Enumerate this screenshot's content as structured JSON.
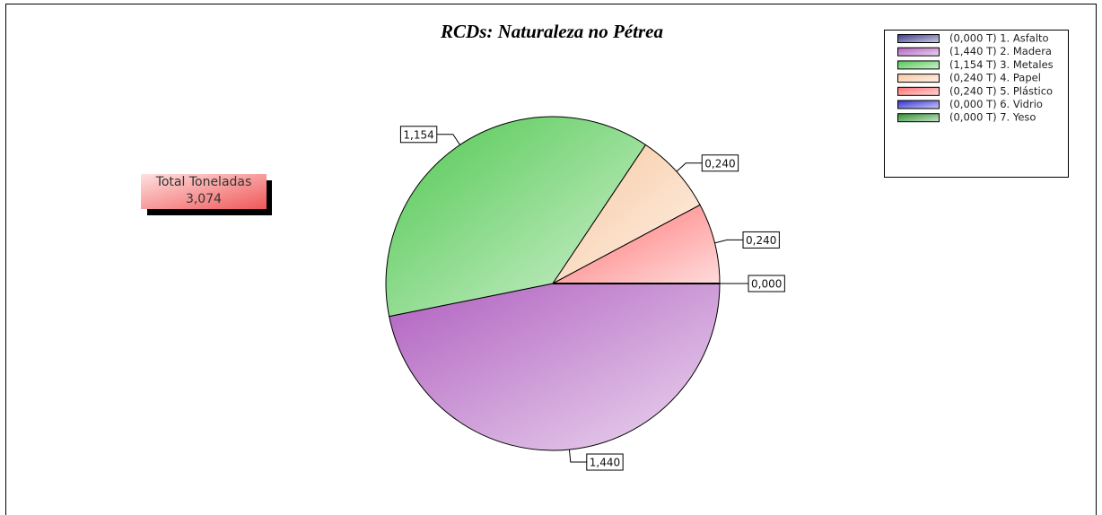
{
  "chart_data": {
    "type": "pie",
    "title": "RCDs: Naturaleza no Pétrea",
    "categories": [
      "(0,000 T) 1. Asfalto",
      "(1,440 T) 2. Madera",
      "(1,154 T) 3. Metales",
      "(0,240 T) 4. Papel",
      "(0,240 T) 5. Plástico",
      "(0,000 T) 6. Vidrio",
      "(0,000 T) 7. Yeso"
    ],
    "values": [
      0,
      1.44,
      1.154,
      0.24,
      0.24,
      0,
      0
    ],
    "value_labels": [
      "0,000",
      "1,440",
      "1,154",
      "0,240",
      "0,240",
      null,
      null
    ],
    "colors": [
      "#3c3c8c",
      "#b060c0",
      "#50c850",
      "#f8c8a0",
      "#ff7070",
      "#3030d0",
      "#309030"
    ],
    "legend": "top-right",
    "total": {
      "label": "Total Toneladas",
      "value_label": "3,074"
    }
  }
}
